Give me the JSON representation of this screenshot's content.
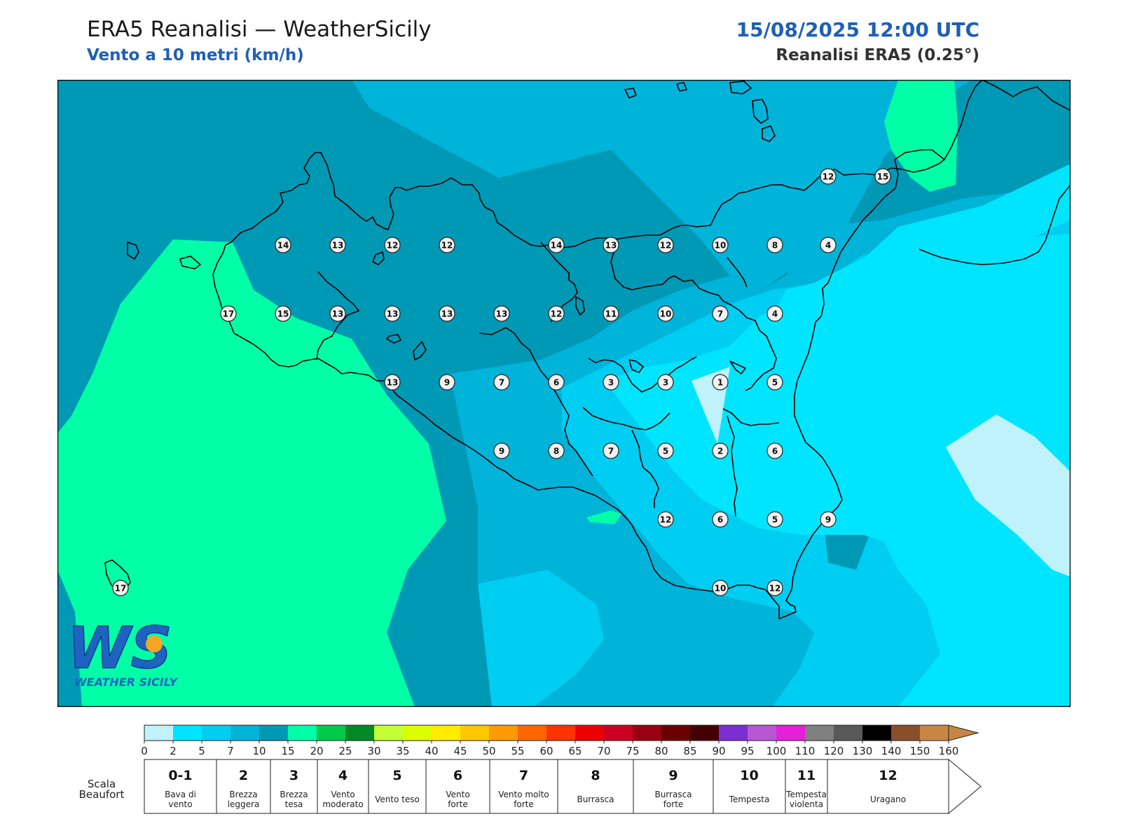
{
  "header": {
    "title": "ERA5 Reanalisi — WeatherSicily",
    "subtitle": "Vento a 10 metri (km/h)",
    "datetime": "15/08/2025 12:00 UTC",
    "source": "Reanalisi ERA5 (0.25°)"
  },
  "logo": {
    "text": "WEATHER SICILY",
    "monogram": "WS"
  },
  "colors": {
    "band_0_2": "#bff2fb",
    "band_2_5": "#00e5ff",
    "band_5_7": "#00cdf2",
    "band_7_10": "#00b3d9",
    "band_10_15": "#0099b5",
    "band_15_20": "#00ffa6",
    "coast": "#000000"
  },
  "colorbar": {
    "ticks": [
      "0",
      "2",
      "5",
      "7",
      "10",
      "15",
      "20",
      "25",
      "30",
      "35",
      "40",
      "45",
      "50",
      "55",
      "60",
      "65",
      "70",
      "75",
      "80",
      "85",
      "90",
      "95",
      "100",
      "110",
      "120",
      "130",
      "140",
      "150",
      "160"
    ],
    "colors": [
      "#bff2fb",
      "#00e5ff",
      "#00cdf2",
      "#00b3d9",
      "#0099b5",
      "#00ffa6",
      "#00c94b",
      "#008a26",
      "#c4ff33",
      "#dcff00",
      "#ffec00",
      "#ffc800",
      "#ff9900",
      "#ff6600",
      "#ff3300",
      "#ee0000",
      "#cc0022",
      "#990011",
      "#6b0000",
      "#440000",
      "#7b2ed2",
      "#b857d6",
      "#e61fd9",
      "#808080",
      "#595959",
      "#000000",
      "#8a4e2b",
      "#c98544"
    ]
  },
  "beaufort": {
    "label_line1": "Scala",
    "label_line2": "Beaufort",
    "classes": [
      {
        "force": "0-1",
        "desc": [
          "Bava di",
          "vento"
        ]
      },
      {
        "force": "2",
        "desc": [
          "Brezza",
          "leggera"
        ]
      },
      {
        "force": "3",
        "desc": [
          "Brezza",
          "tesa"
        ]
      },
      {
        "force": "4",
        "desc": [
          "Vento",
          "moderato"
        ]
      },
      {
        "force": "5",
        "desc": [
          "Vento teso"
        ]
      },
      {
        "force": "6",
        "desc": [
          "Vento",
          "forte"
        ]
      },
      {
        "force": "7",
        "desc": [
          "Vento molto",
          "forte"
        ]
      },
      {
        "force": "8",
        "desc": [
          "Burrasca"
        ]
      },
      {
        "force": "9",
        "desc": [
          "Burrasca",
          "forte"
        ]
      },
      {
        "force": "10",
        "desc": [
          "Tempesta"
        ]
      },
      {
        "force": "11",
        "desc": [
          "Tempesta",
          "violenta"
        ]
      },
      {
        "force": "12",
        "desc": [
          "Uragano"
        ]
      }
    ]
  },
  "stations": [
    {
      "v": "12"
    },
    {
      "v": "15"
    },
    {
      "v": "14"
    },
    {
      "v": "13"
    },
    {
      "v": "12"
    },
    {
      "v": "12"
    },
    {
      "v": "14"
    },
    {
      "v": "13"
    },
    {
      "v": "12"
    },
    {
      "v": "10"
    },
    {
      "v": "8"
    },
    {
      "v": "4"
    },
    {
      "v": "17"
    },
    {
      "v": "15"
    },
    {
      "v": "13"
    },
    {
      "v": "13"
    },
    {
      "v": "13"
    },
    {
      "v": "13"
    },
    {
      "v": "12"
    },
    {
      "v": "11"
    },
    {
      "v": "10"
    },
    {
      "v": "7"
    },
    {
      "v": "4"
    },
    {
      "v": "13"
    },
    {
      "v": "9"
    },
    {
      "v": "7"
    },
    {
      "v": "6"
    },
    {
      "v": "3"
    },
    {
      "v": "3"
    },
    {
      "v": "1"
    },
    {
      "v": "5"
    },
    {
      "v": "9"
    },
    {
      "v": "8"
    },
    {
      "v": "7"
    },
    {
      "v": "5"
    },
    {
      "v": "2"
    },
    {
      "v": "6"
    },
    {
      "v": "12"
    },
    {
      "v": "6"
    },
    {
      "v": "5"
    },
    {
      "v": "9"
    },
    {
      "v": "10"
    },
    {
      "v": "12"
    },
    {
      "v": "17"
    }
  ]
}
